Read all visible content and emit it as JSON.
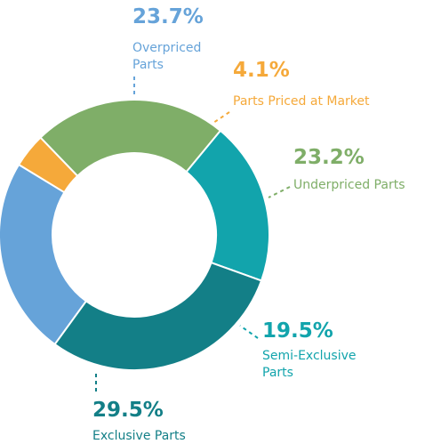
{
  "chart_data": {
    "type": "pie",
    "variant": "donut",
    "legend": "none",
    "slices": [
      {
        "name": "Overpriced Parts",
        "lines": [
          "Overpriced",
          "Parts"
        ],
        "value": 23.7,
        "label": "23.7%",
        "color": "#66a3d9"
      },
      {
        "name": "Parts Priced at Market",
        "lines": [
          "Parts Priced at Market"
        ],
        "value": 4.1,
        "label": "4.1%",
        "color": "#f5a93a"
      },
      {
        "name": "Underpriced Parts",
        "lines": [
          "Underpriced Parts"
        ],
        "value": 23.2,
        "label": "23.2%",
        "color": "#7fae68"
      },
      {
        "name": "Semi-Exclusive Parts",
        "lines": [
          "Semi-Exclusive",
          "Parts"
        ],
        "value": 19.5,
        "label": "19.5%",
        "color": "#12a4ac"
      },
      {
        "name": "Exclusive Parts",
        "lines": [
          "Exclusive Parts"
        ],
        "value": 29.5,
        "label": "29.5%",
        "color": "#137f87"
      }
    ]
  }
}
